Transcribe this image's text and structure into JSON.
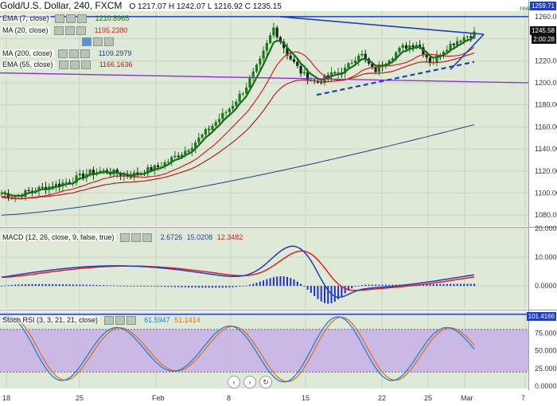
{
  "header": {
    "title": "Gold/U.S. Dollar, 240, FXCM",
    "ohlc": "O 1217.07 H 1242.07 L 1216.92 C 1235.15",
    "realtime_label": "realtime"
  },
  "price_pane": {
    "legend": [
      {
        "label": "EMA (7, close)",
        "value": "1210.8965",
        "color": "#1a6b1a"
      },
      {
        "label": "MA (20, close)",
        "value": "1195.2380",
        "color": "#e02020"
      },
      {
        "label": "",
        "value": "",
        "color": "#7aa7d8"
      },
      {
        "label": "MA (200, close)",
        "value": "1109.2979",
        "color": "#1f3f8f"
      },
      {
        "label": "EMA (55, close)",
        "value": "1166.1636",
        "color": "#b22222"
      }
    ],
    "price_tags": [
      {
        "text": "1259.71",
        "color": "#1f3fbf"
      },
      {
        "text": "1245.58",
        "color": "#111111"
      },
      {
        "text": "2:00:28",
        "color": "#111111"
      }
    ],
    "y_ticks": [
      "1260.00",
      "1240.00",
      "1220.00",
      "1200.00",
      "1180.00",
      "1160.00",
      "1140.00",
      "1120.00",
      "1100.00",
      "1080.00"
    ]
  },
  "macd_pane": {
    "legend_label": "MACD (12, 26, close, 9, false, true)",
    "values": [
      "2.6726",
      "15.0208",
      "12.3482"
    ],
    "value_colors": [
      "#1f3fbf",
      "#1f3fbf",
      "#e02020"
    ],
    "y_ticks": [
      "20.0000",
      "10.0000",
      "0.0000"
    ]
  },
  "rsi_pane": {
    "legend_label": "Stoch RSI (3, 3, 21, 21, close)",
    "values": [
      "61.5947",
      "51.1414"
    ],
    "value_colors": [
      "#1f7fdf",
      "#e07020"
    ],
    "tag": "101.4166",
    "y_ticks": [
      "75.0000",
      "50.0000",
      "25.0000",
      "0.0000"
    ]
  },
  "x_axis": {
    "ticks": [
      "18",
      "25",
      "Feb",
      "8",
      "15",
      "22",
      "25",
      "Mar",
      "7"
    ]
  },
  "nav_icons": [
    "chevron-left",
    "chevron-right",
    "reset"
  ],
  "colors": {
    "bull_candle": "#1a7a1a",
    "bear_candle": "#0b2b0b",
    "trendline": "#1f3fbf",
    "purple_line": "#8a2be2"
  },
  "chart_data": {
    "type": "candlestick",
    "title": "Gold/U.S. Dollar, 240, FXCM",
    "x_ticks": [
      "18",
      "25",
      "Feb",
      "8",
      "15",
      "22",
      "25",
      "Mar",
      "7"
    ],
    "price_ylim": [
      1070,
      1265
    ],
    "price_close_approx": [
      1100,
      1097,
      1102,
      1105,
      1108,
      1112,
      1118,
      1120,
      1118,
      1116,
      1120,
      1124,
      1132,
      1140,
      1152,
      1165,
      1178,
      1195,
      1218,
      1250,
      1225,
      1208,
      1200,
      1207,
      1212,
      1228,
      1210,
      1222,
      1232,
      1236,
      1218,
      1232,
      1240,
      1245
    ],
    "ema7_last": 1210.8965,
    "ma20_last": 1195.238,
    "ma200_last": 1109.2979,
    "ema55_last": 1166.1636,
    "macd": {
      "values": [
        2.6726,
        15.0208,
        12.3482
      ],
      "ylim": [
        -8,
        20
      ]
    },
    "stoch_rsi": {
      "k": 61.5947,
      "d": 51.1414,
      "ylim": [
        0,
        100
      ]
    }
  }
}
